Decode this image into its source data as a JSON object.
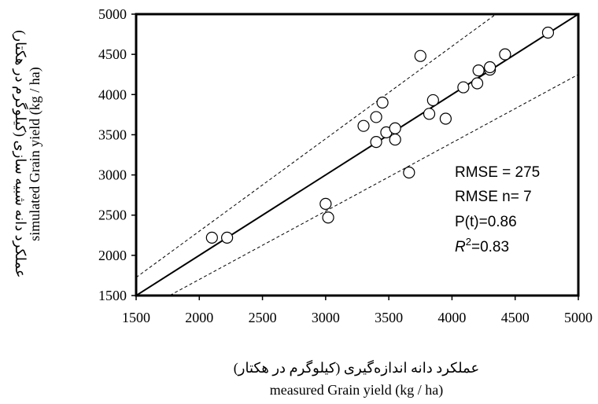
{
  "chart_data": {
    "type": "scatter",
    "xlabel_fa": "عملکرد دانه اندازه‌گیری (کیلوگرم در هکتار)",
    "xlabel_en": "measured Grain yield (kg / ha)",
    "ylabel_fa": "عملکرد دانه شبیه سازی (کیلوگرم در هکتار)",
    "ylabel_en": "simulated Grain yield (kg / ha)",
    "xlim": [
      1500,
      5000
    ],
    "ylim": [
      1500,
      5000
    ],
    "x_ticks": [
      1500,
      2000,
      2500,
      3000,
      3500,
      4000,
      4500,
      5000
    ],
    "y_ticks": [
      1500,
      2000,
      2500,
      3000,
      3500,
      4000,
      4500,
      5000
    ],
    "grid": false,
    "reference_lines": {
      "one_to_one": true,
      "upper_bound_slope": 1.15,
      "lower_bound_slope": 0.85
    },
    "stats": {
      "rmse_label": "RMSE =  275",
      "rmse_n_label": "RMSE n= 7",
      "pt_label": "P(t)=0.86",
      "r2_symbol": "R",
      "r2_exp": "2",
      "r2_value": "=0.83"
    },
    "points": [
      {
        "x": 2100,
        "y": 2220
      },
      {
        "x": 2220,
        "y": 2220
      },
      {
        "x": 3000,
        "y": 2640
      },
      {
        "x": 3020,
        "y": 2470
      },
      {
        "x": 3300,
        "y": 3610
      },
      {
        "x": 3400,
        "y": 3410
      },
      {
        "x": 3400,
        "y": 3720
      },
      {
        "x": 3450,
        "y": 3900
      },
      {
        "x": 3480,
        "y": 3530
      },
      {
        "x": 3550,
        "y": 3440
      },
      {
        "x": 3550,
        "y": 3580
      },
      {
        "x": 3660,
        "y": 3030
      },
      {
        "x": 3750,
        "y": 4480
      },
      {
        "x": 3820,
        "y": 3760
      },
      {
        "x": 3850,
        "y": 3930
      },
      {
        "x": 3950,
        "y": 3700
      },
      {
        "x": 4090,
        "y": 4090
      },
      {
        "x": 4200,
        "y": 4140
      },
      {
        "x": 4210,
        "y": 4300
      },
      {
        "x": 4300,
        "y": 4310
      },
      {
        "x": 4300,
        "y": 4340
      },
      {
        "x": 4420,
        "y": 4500
      },
      {
        "x": 4760,
        "y": 4770
      }
    ]
  }
}
